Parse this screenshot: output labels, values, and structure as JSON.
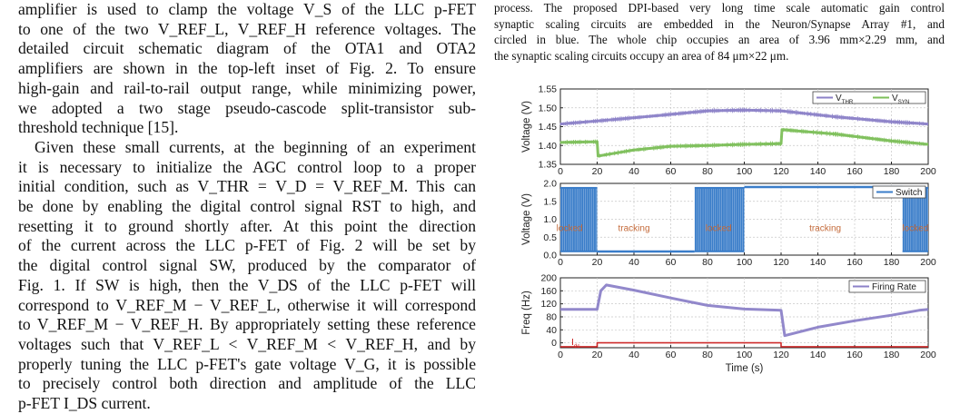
{
  "text": {
    "p1": [
      "amplifier is used to clamp the voltage V_S of the LLC p-FET",
      "to one of the two V_REF_L, V_REF_H reference voltages. The",
      "detailed circuit schematic diagram of the OTA1 and OTA2",
      "amplifiers are shown in the top-left inset of Fig. 2. To ensure",
      "high-gain and rail-to-rail output range, while minimizing power,",
      "we adopted a two stage pseudo-cascode split-transistor sub-",
      "threshold technique [15]."
    ],
    "p2": [
      "Given these small currents, at the beginning of an experiment",
      "it is necessary to initialize the AGC control loop to a proper",
      "initial condition, such as V_THR = V_D = V_REF_M. This can",
      "be done by enabling the digital control signal RST to high, and",
      "resetting it to ground shortly after. At this point the direction",
      "of the current across the LLC p-FET of Fig. 2 will be set by",
      "the digital control signal SW, produced by the comparator of",
      "Fig. 1. If SW is high, then the V_DS of the LLC p-FET will",
      "correspond to V_REF_M − V_REF_L, otherwise it will correspond",
      "to V_REF_M − V_REF_H. By appropriately setting these reference",
      "voltages such that V_REF_L < V_REF_M < V_REF_H, and by",
      "properly tuning the LLC p-FET's gate voltage V_G, it is possible",
      "to precisely control both direction and amplitude of the LLC",
      "p-FET I_DS current."
    ],
    "caption": [
      "process. The proposed DPI-based very long time scale automatic gain control",
      "synaptic scaling circuits are embedded in the Neuron/Synapse Array #1, and",
      "circled in blue. The whole chip occupies an area of 3.96 mm×2.29 mm, and",
      "the synaptic scaling circuits occupy an area of 84 μm×22 μm."
    ]
  },
  "chart_data": [
    {
      "type": "line",
      "ylabel": "Voltage (V)",
      "ylim": [
        1.35,
        1.55
      ],
      "yticks": [
        "1.35",
        "1.40",
        "1.45",
        "1.50",
        "1.55"
      ],
      "xlim": [
        0,
        200
      ],
      "xticks": [
        "0",
        "20",
        "40",
        "60",
        "80",
        "100",
        "120",
        "140",
        "160",
        "180",
        "200"
      ],
      "grid": true,
      "legend": "top-right",
      "series": [
        {
          "name": "V_THR",
          "color": "#8c82c8",
          "x": [
            0,
            20,
            50,
            80,
            100,
            120,
            150,
            180,
            200
          ],
          "values": [
            1.457,
            1.465,
            1.478,
            1.492,
            1.494,
            1.492,
            1.476,
            1.463,
            1.457
          ]
        },
        {
          "name": "V_SYN",
          "color": "#7dbf5a",
          "x": [
            0,
            20,
            20.5,
            40,
            60,
            80,
            100,
            120,
            120.5,
            150,
            180,
            200
          ],
          "values": [
            1.408,
            1.41,
            1.372,
            1.388,
            1.398,
            1.4,
            1.403,
            1.405,
            1.442,
            1.43,
            1.412,
            1.403
          ]
        }
      ]
    },
    {
      "type": "line",
      "ylabel": "Voltage (V)",
      "ylim": [
        0,
        2.0
      ],
      "yticks": [
        "0.0",
        "0.5",
        "1.0",
        "1.5",
        "2.0"
      ],
      "xlim": [
        0,
        200
      ],
      "xticks": [
        "0",
        "20",
        "40",
        "60",
        "80",
        "100",
        "120",
        "140",
        "160",
        "180",
        "200"
      ],
      "grid": true,
      "legend": "top-right",
      "series": [
        {
          "name": "Switch",
          "color": "#3a7dc9",
          "bands": [
            {
              "mode": "toggle",
              "x0": 0,
              "x1": 20,
              "high": 1.9,
              "low": 0.08
            },
            {
              "mode": "low",
              "x0": 20,
              "x1": 73,
              "level": 0.1
            },
            {
              "mode": "toggle",
              "x0": 73,
              "x1": 100,
              "high": 1.9,
              "low": 0.08
            },
            {
              "mode": "high",
              "x0": 100,
              "x1": 186,
              "level": 1.9
            },
            {
              "mode": "toggle",
              "x0": 186,
              "x1": 200,
              "high": 1.9,
              "low": 0.08
            }
          ]
        }
      ],
      "annotations": [
        {
          "text": "locked",
          "x": 5,
          "y": 0.75
        },
        {
          "text": "tracking",
          "x": 40,
          "y": 0.75
        },
        {
          "text": "locked",
          "x": 86,
          "y": 0.75
        },
        {
          "text": "tracking",
          "x": 144,
          "y": 0.75
        },
        {
          "text": "locked",
          "x": 193,
          "y": 0.75
        }
      ],
      "annotation_color": "#c46a3a"
    },
    {
      "type": "line",
      "ylabel": "Freq (Hz)",
      "ylim": [
        -15,
        200
      ],
      "yticks": [
        "0",
        "40",
        "80",
        "120",
        "160",
        "200"
      ],
      "ytick_values": [
        0,
        40,
        80,
        120,
        160,
        200
      ],
      "xlabel": "Time (s)",
      "xlim": [
        0,
        200
      ],
      "xticks": [
        "0",
        "20",
        "40",
        "60",
        "80",
        "100",
        "120",
        "140",
        "160",
        "180",
        "200"
      ],
      "grid": true,
      "legend": "top-right",
      "series": [
        {
          "name": "Firing Rate",
          "color": "#8c82c8",
          "x": [
            0,
            20,
            22,
            25,
            40,
            60,
            80,
            100,
            120,
            122,
            140,
            160,
            180,
            195,
            200
          ],
          "values": [
            103,
            103,
            160,
            178,
            162,
            138,
            115,
            104,
            100,
            22,
            48,
            68,
            85,
            100,
            103
          ]
        },
        {
          "name": "I_dc",
          "color": "#cc2222",
          "x": [
            0,
            20,
            20,
            120,
            120,
            200
          ],
          "values": [
            -12,
            -12,
            0,
            0,
            -12,
            -12
          ]
        }
      ]
    }
  ]
}
